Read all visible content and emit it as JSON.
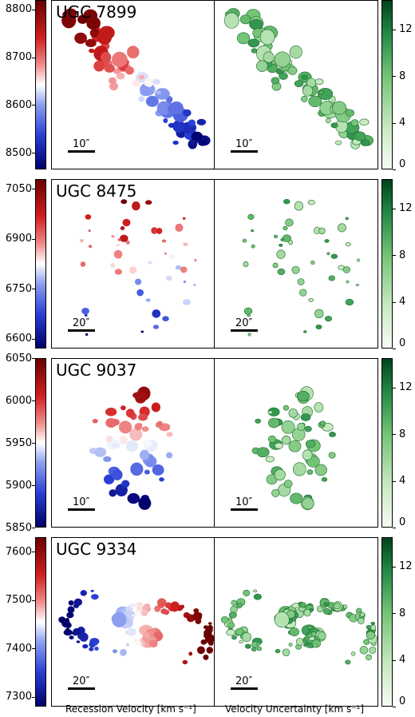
{
  "rows": [
    {
      "name": "UGC 7899",
      "scale": "10″",
      "vel_ticks": [
        "8800",
        "8700",
        "8600",
        "8500"
      ],
      "vel_tick_values": [
        8800,
        8700,
        8600,
        8500
      ],
      "vel_range": [
        8465,
        8820
      ],
      "unc_ticks": [
        "12",
        "8",
        "4",
        "0"
      ],
      "unc_tick_values": [
        12,
        8,
        4,
        0
      ],
      "unc_range": [
        0,
        14.5
      ]
    },
    {
      "name": "UGC 8475",
      "scale": "20″",
      "vel_ticks": [
        "7050",
        "6900",
        "6750",
        "6600"
      ],
      "vel_tick_values": [
        7050,
        6900,
        6750,
        6600
      ],
      "vel_range": [
        6570,
        7080
      ],
      "unc_ticks": [
        "12",
        "8",
        "4",
        "0"
      ],
      "unc_tick_values": [
        12,
        8,
        4,
        0
      ],
      "unc_range": [
        0,
        14.5
      ]
    },
    {
      "name": "UGC 9037",
      "scale": "10″",
      "vel_ticks": [
        "6050",
        "6000",
        "5950",
        "5900",
        "5850"
      ],
      "vel_tick_values": [
        6050,
        6000,
        5950,
        5900,
        5850
      ],
      "vel_range": [
        5850,
        6050
      ],
      "unc_ticks": [
        "12",
        "8",
        "4",
        "0"
      ],
      "unc_tick_values": [
        12,
        8,
        4,
        0
      ],
      "unc_range": [
        0,
        14.5
      ]
    },
    {
      "name": "UGC 9334",
      "scale": "20″",
      "vel_ticks": [
        "7600",
        "7500",
        "7400",
        "7300"
      ],
      "vel_tick_values": [
        7600,
        7500,
        7400,
        7300
      ],
      "vel_range": [
        7280,
        7630
      ],
      "unc_ticks": [
        "12",
        "8",
        "4",
        "0"
      ],
      "unc_tick_values": [
        12,
        8,
        4,
        0
      ],
      "unc_range": [
        0,
        14.5
      ]
    }
  ],
  "xlabel_left": "Recession Velocity [km s⁻¹]",
  "xlabel_right": "Velocity Uncertainty [km s⁻¹]",
  "colors": {
    "vel_high": "#6b0000",
    "vel_mid": "#ffffff",
    "vel_low": "#00006a",
    "unc_high": "#00441b",
    "unc_low": "#f7fcf5"
  }
}
